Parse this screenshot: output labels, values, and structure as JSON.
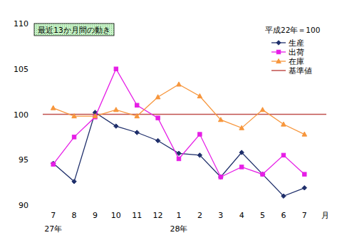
{
  "chart_data": {
    "type": "line",
    "title": "最近13か月間の動き",
    "legend_title": "平成22年＝100",
    "xlabel": "月",
    "categories": [
      "7",
      "8",
      "9",
      "10",
      "11",
      "12",
      "1",
      "2",
      "3",
      "4",
      "5",
      "6",
      "7"
    ],
    "year_labels": [
      "27年",
      null,
      null,
      null,
      null,
      null,
      "28年",
      null,
      null,
      null,
      null,
      null,
      null
    ],
    "series": [
      {
        "name": "生産",
        "color": "#1f2f6b",
        "marker": "diamond",
        "values": [
          94.6,
          92.6,
          100.2,
          98.7,
          98.0,
          97.1,
          95.7,
          95.5,
          93.1,
          95.8,
          93.4,
          91.0,
          91.9
        ]
      },
      {
        "name": "出荷",
        "color": "#e61ee6",
        "marker": "square",
        "values": [
          94.5,
          97.5,
          99.7,
          105.0,
          101.0,
          99.6,
          95.1,
          97.8,
          93.1,
          94.2,
          93.4,
          95.5,
          93.4
        ]
      },
      {
        "name": "在庫",
        "color": "#f7963c",
        "marker": "triangle",
        "values": [
          100.7,
          99.8,
          99.8,
          100.5,
          99.8,
          101.9,
          103.3,
          102.0,
          99.4,
          98.5,
          100.5,
          98.9,
          97.8
        ]
      }
    ],
    "reference_line": {
      "name": "基準値",
      "value": 100,
      "color": "#c0504d"
    },
    "ylim": [
      90,
      110
    ],
    "yticks": [
      90,
      95,
      100,
      105,
      110
    ],
    "grid": false,
    "legend": "top-right"
  }
}
